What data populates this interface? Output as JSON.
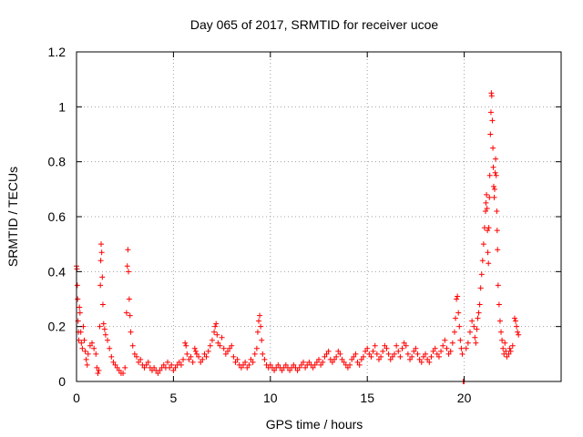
{
  "chart_data": {
    "type": "scatter",
    "title": "Day 065 of 2017, SRMTID for receiver ucoe",
    "xlabel": "GPS time / hours",
    "ylabel": "SRMTID / TECUs",
    "xlim": [
      0,
      25
    ],
    "ylim": [
      0,
      1.2
    ],
    "xticks": [
      0,
      5,
      10,
      15,
      20
    ],
    "xtick_labels": [
      "0",
      "5",
      "10",
      "15",
      "20"
    ],
    "yticks": [
      0,
      0.2,
      0.4,
      0.6,
      0.8,
      1,
      1.2
    ],
    "ytick_labels": [
      "0",
      "0.2",
      "0.4",
      "0.6",
      "0.8",
      "1",
      "1.2"
    ],
    "grid": true,
    "marker": "+",
    "series": [
      {
        "name": "ucoe",
        "color": "#ff0000",
        "points": [
          [
            0.0,
            0.42
          ],
          [
            0.02,
            0.41
          ],
          [
            0.04,
            0.35
          ],
          [
            0.06,
            0.3
          ],
          [
            0.08,
            0.22
          ],
          [
            0.1,
            0.18
          ],
          [
            0.12,
            0.15
          ],
          [
            0.15,
            0.27
          ],
          [
            0.18,
            0.25
          ],
          [
            0.22,
            0.18
          ],
          [
            0.25,
            0.14
          ],
          [
            0.3,
            0.12
          ],
          [
            0.35,
            0.2
          ],
          [
            0.4,
            0.15
          ],
          [
            0.45,
            0.11
          ],
          [
            0.5,
            0.08
          ],
          [
            0.55,
            0.06
          ],
          [
            0.6,
            0.1
          ],
          [
            0.7,
            0.13
          ],
          [
            0.8,
            0.14
          ],
          [
            0.9,
            0.12
          ],
          [
            1.0,
            0.1
          ],
          [
            1.05,
            0.05
          ],
          [
            1.1,
            0.03
          ],
          [
            1.15,
            0.04
          ],
          [
            1.2,
            0.2
          ],
          [
            1.23,
            0.35
          ],
          [
            1.25,
            0.44
          ],
          [
            1.27,
            0.5
          ],
          [
            1.3,
            0.47
          ],
          [
            1.33,
            0.38
          ],
          [
            1.36,
            0.28
          ],
          [
            1.4,
            0.21
          ],
          [
            1.45,
            0.19
          ],
          [
            1.5,
            0.17
          ],
          [
            1.6,
            0.15
          ],
          [
            1.7,
            0.12
          ],
          [
            1.8,
            0.09
          ],
          [
            1.9,
            0.07
          ],
          [
            2.0,
            0.06
          ],
          [
            2.1,
            0.05
          ],
          [
            2.2,
            0.04
          ],
          [
            2.3,
            0.03
          ],
          [
            2.4,
            0.03
          ],
          [
            2.5,
            0.05
          ],
          [
            2.58,
            0.25
          ],
          [
            2.62,
            0.42
          ],
          [
            2.65,
            0.48
          ],
          [
            2.68,
            0.4
          ],
          [
            2.72,
            0.3
          ],
          [
            2.76,
            0.24
          ],
          [
            2.8,
            0.18
          ],
          [
            2.9,
            0.13
          ],
          [
            3.0,
            0.1
          ],
          [
            3.1,
            0.09
          ],
          [
            3.2,
            0.07
          ],
          [
            3.3,
            0.08
          ],
          [
            3.4,
            0.06
          ],
          [
            3.5,
            0.05
          ],
          [
            3.6,
            0.06
          ],
          [
            3.7,
            0.07
          ],
          [
            3.8,
            0.05
          ],
          [
            3.9,
            0.04
          ],
          [
            4.0,
            0.05
          ],
          [
            4.1,
            0.04
          ],
          [
            4.2,
            0.03
          ],
          [
            4.3,
            0.04
          ],
          [
            4.4,
            0.05
          ],
          [
            4.5,
            0.06
          ],
          [
            4.6,
            0.05
          ],
          [
            4.7,
            0.07
          ],
          [
            4.8,
            0.05
          ],
          [
            4.9,
            0.06
          ],
          [
            5.0,
            0.04
          ],
          [
            5.1,
            0.05
          ],
          [
            5.2,
            0.06
          ],
          [
            5.3,
            0.07
          ],
          [
            5.4,
            0.06
          ],
          [
            5.5,
            0.08
          ],
          [
            5.6,
            0.14
          ],
          [
            5.65,
            0.13
          ],
          [
            5.7,
            0.1
          ],
          [
            5.8,
            0.08
          ],
          [
            5.9,
            0.09
          ],
          [
            6.0,
            0.07
          ],
          [
            6.1,
            0.12
          ],
          [
            6.15,
            0.11
          ],
          [
            6.2,
            0.1
          ],
          [
            6.3,
            0.09
          ],
          [
            6.4,
            0.07
          ],
          [
            6.5,
            0.08
          ],
          [
            6.6,
            0.1
          ],
          [
            6.7,
            0.09
          ],
          [
            6.8,
            0.11
          ],
          [
            6.9,
            0.13
          ],
          [
            7.0,
            0.15
          ],
          [
            7.1,
            0.18
          ],
          [
            7.15,
            0.2
          ],
          [
            7.2,
            0.21
          ],
          [
            7.25,
            0.17
          ],
          [
            7.3,
            0.14
          ],
          [
            7.4,
            0.13
          ],
          [
            7.5,
            0.16
          ],
          [
            7.6,
            0.12
          ],
          [
            7.7,
            0.1
          ],
          [
            7.8,
            0.11
          ],
          [
            7.9,
            0.12
          ],
          [
            8.0,
            0.13
          ],
          [
            8.1,
            0.09
          ],
          [
            8.2,
            0.07
          ],
          [
            8.3,
            0.08
          ],
          [
            8.4,
            0.06
          ],
          [
            8.5,
            0.05
          ],
          [
            8.6,
            0.06
          ],
          [
            8.7,
            0.07
          ],
          [
            8.8,
            0.05
          ],
          [
            8.9,
            0.06
          ],
          [
            9.0,
            0.08
          ],
          [
            9.1,
            0.07
          ],
          [
            9.2,
            0.1
          ],
          [
            9.3,
            0.12
          ],
          [
            9.35,
            0.18
          ],
          [
            9.4,
            0.22
          ],
          [
            9.45,
            0.24
          ],
          [
            9.5,
            0.2
          ],
          [
            9.55,
            0.15
          ],
          [
            9.6,
            0.1
          ],
          [
            9.7,
            0.08
          ],
          [
            9.8,
            0.06
          ],
          [
            9.9,
            0.05
          ],
          [
            10.0,
            0.06
          ],
          [
            10.1,
            0.05
          ],
          [
            10.2,
            0.04
          ],
          [
            10.3,
            0.05
          ],
          [
            10.4,
            0.06
          ],
          [
            10.5,
            0.05
          ],
          [
            10.6,
            0.04
          ],
          [
            10.7,
            0.05
          ],
          [
            10.8,
            0.06
          ],
          [
            10.9,
            0.05
          ],
          [
            11.0,
            0.04
          ],
          [
            11.1,
            0.05
          ],
          [
            11.2,
            0.06
          ],
          [
            11.3,
            0.05
          ],
          [
            11.4,
            0.04
          ],
          [
            11.5,
            0.05
          ],
          [
            11.6,
            0.06
          ],
          [
            11.7,
            0.07
          ],
          [
            11.8,
            0.05
          ],
          [
            11.9,
            0.06
          ],
          [
            12.0,
            0.07
          ],
          [
            12.1,
            0.06
          ],
          [
            12.2,
            0.05
          ],
          [
            12.3,
            0.06
          ],
          [
            12.4,
            0.07
          ],
          [
            12.5,
            0.08
          ],
          [
            12.6,
            0.06
          ],
          [
            12.7,
            0.07
          ],
          [
            12.8,
            0.09
          ],
          [
            12.9,
            0.1
          ],
          [
            13.0,
            0.11
          ],
          [
            13.1,
            0.08
          ],
          [
            13.2,
            0.07
          ],
          [
            13.3,
            0.08
          ],
          [
            13.4,
            0.09
          ],
          [
            13.5,
            0.11
          ],
          [
            13.6,
            0.1
          ],
          [
            13.7,
            0.08
          ],
          [
            13.8,
            0.07
          ],
          [
            13.9,
            0.06
          ],
          [
            14.0,
            0.05
          ],
          [
            14.1,
            0.06
          ],
          [
            14.2,
            0.08
          ],
          [
            14.3,
            0.09
          ],
          [
            14.4,
            0.1
          ],
          [
            14.5,
            0.07
          ],
          [
            14.6,
            0.06
          ],
          [
            14.7,
            0.08
          ],
          [
            14.8,
            0.09
          ],
          [
            14.9,
            0.11
          ],
          [
            15.0,
            0.12
          ],
          [
            15.1,
            0.1
          ],
          [
            15.2,
            0.09
          ],
          [
            15.3,
            0.11
          ],
          [
            15.4,
            0.13
          ],
          [
            15.5,
            0.1
          ],
          [
            15.6,
            0.08
          ],
          [
            15.7,
            0.09
          ],
          [
            15.8,
            0.11
          ],
          [
            15.9,
            0.13
          ],
          [
            16.0,
            0.12
          ],
          [
            16.1,
            0.1
          ],
          [
            16.2,
            0.08
          ],
          [
            16.3,
            0.09
          ],
          [
            16.4,
            0.1
          ],
          [
            16.5,
            0.13
          ],
          [
            16.6,
            0.11
          ],
          [
            16.7,
            0.09
          ],
          [
            16.8,
            0.12
          ],
          [
            16.9,
            0.14
          ],
          [
            17.0,
            0.13
          ],
          [
            17.1,
            0.1
          ],
          [
            17.2,
            0.08
          ],
          [
            17.3,
            0.09
          ],
          [
            17.4,
            0.11
          ],
          [
            17.5,
            0.12
          ],
          [
            17.6,
            0.1
          ],
          [
            17.7,
            0.08
          ],
          [
            17.8,
            0.07
          ],
          [
            17.9,
            0.09
          ],
          [
            18.0,
            0.1
          ],
          [
            18.1,
            0.08
          ],
          [
            18.2,
            0.07
          ],
          [
            18.3,
            0.09
          ],
          [
            18.4,
            0.11
          ],
          [
            18.5,
            0.12
          ],
          [
            18.6,
            0.1
          ],
          [
            18.7,
            0.09
          ],
          [
            18.8,
            0.11
          ],
          [
            18.9,
            0.13
          ],
          [
            19.0,
            0.15
          ],
          [
            19.1,
            0.12
          ],
          [
            19.2,
            0.1
          ],
          [
            19.3,
            0.11
          ],
          [
            19.4,
            0.14
          ],
          [
            19.5,
            0.18
          ],
          [
            19.55,
            0.23
          ],
          [
            19.6,
            0.3
          ],
          [
            19.65,
            0.31
          ],
          [
            19.7,
            0.25
          ],
          [
            19.75,
            0.2
          ],
          [
            19.8,
            0.15
          ],
          [
            19.85,
            0.12
          ],
          [
            19.9,
            0.1
          ],
          [
            19.95,
            0.0
          ],
          [
            20.0,
            0.0
          ],
          [
            20.1,
            0.12
          ],
          [
            20.2,
            0.14
          ],
          [
            20.3,
            0.18
          ],
          [
            20.4,
            0.22
          ],
          [
            20.5,
            0.2
          ],
          [
            20.55,
            0.16
          ],
          [
            20.6,
            0.14
          ],
          [
            20.65,
            0.19
          ],
          [
            20.7,
            0.23
          ],
          [
            20.75,
            0.25
          ],
          [
            20.8,
            0.28
          ],
          [
            20.85,
            0.34
          ],
          [
            20.9,
            0.39
          ],
          [
            20.95,
            0.44
          ],
          [
            21.0,
            0.5
          ],
          [
            21.05,
            0.56
          ],
          [
            21.1,
            0.62
          ],
          [
            21.12,
            0.65
          ],
          [
            21.15,
            0.68
          ],
          [
            21.18,
            0.63
          ],
          [
            21.2,
            0.55
          ],
          [
            21.22,
            0.47
          ],
          [
            21.25,
            0.43
          ],
          [
            21.27,
            0.56
          ],
          [
            21.3,
            0.67
          ],
          [
            21.32,
            0.75
          ],
          [
            21.35,
            0.9
          ],
          [
            21.38,
            0.98
          ],
          [
            21.4,
            1.05
          ],
          [
            21.42,
            1.04
          ],
          [
            21.45,
            0.95
          ],
          [
            21.48,
            0.85
          ],
          [
            21.5,
            0.78
          ],
          [
            21.52,
            0.71
          ],
          [
            21.55,
            0.67
          ],
          [
            21.57,
            0.7
          ],
          [
            21.6,
            0.76
          ],
          [
            21.62,
            0.81
          ],
          [
            21.65,
            0.75
          ],
          [
            21.68,
            0.62
          ],
          [
            21.7,
            0.55
          ],
          [
            21.72,
            0.48
          ],
          [
            21.75,
            0.35
          ],
          [
            21.8,
            0.28
          ],
          [
            21.85,
            0.22
          ],
          [
            21.9,
            0.18
          ],
          [
            21.95,
            0.15
          ],
          [
            22.0,
            0.12
          ],
          [
            22.05,
            0.1
          ],
          [
            22.1,
            0.14
          ],
          [
            22.15,
            0.11
          ],
          [
            22.2,
            0.09
          ],
          [
            22.3,
            0.1
          ],
          [
            22.35,
            0.12
          ],
          [
            22.4,
            0.11
          ],
          [
            22.5,
            0.13
          ],
          [
            22.6,
            0.23
          ],
          [
            22.65,
            0.22
          ],
          [
            22.7,
            0.2
          ],
          [
            22.75,
            0.18
          ],
          [
            22.8,
            0.17
          ]
        ]
      }
    ]
  }
}
